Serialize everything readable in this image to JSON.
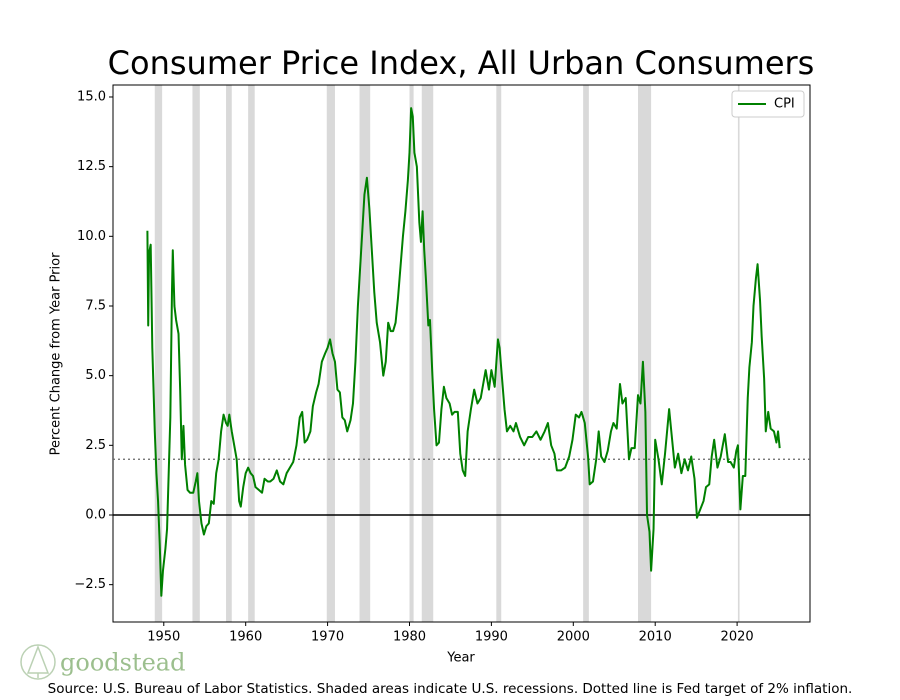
{
  "chart_data": {
    "type": "line",
    "title": "Consumer Price Index, All Urban Consumers",
    "x_label": "Year",
    "y_label": "Percent Change from Year Prior",
    "source": "Source: U.S. Bureau of Labor Statistics. Shaded areas indicate U.S. recessions. Dotted line is Fed target of 2% inflation.",
    "watermark": "goodstead",
    "xlim": [
      1943.8,
      2028.9
    ],
    "ylim": [
      -3.84,
      15.43
    ],
    "xticks": [
      1950,
      1960,
      1970,
      1980,
      1990,
      2000,
      2010,
      2020
    ],
    "yticks": [
      {
        "value": -2.5,
        "label": "−2.5"
      },
      {
        "value": 0,
        "label": "0.0"
      },
      {
        "value": 2.5,
        "label": "2.5"
      },
      {
        "value": 5,
        "label": "5.0"
      },
      {
        "value": 7.5,
        "label": "7.5"
      },
      {
        "value": 10,
        "label": "10.0"
      },
      {
        "value": 12.5,
        "label": "12.5"
      },
      {
        "value": 15,
        "label": "15.0"
      }
    ],
    "reference_line": 2,
    "recessions": [
      [
        1948.9,
        1949.8
      ],
      [
        1953.5,
        1954.4
      ],
      [
        1957.6,
        1958.3
      ],
      [
        1960.3,
        1961.1
      ],
      [
        1969.9,
        1970.9
      ],
      [
        1973.9,
        1975.2
      ],
      [
        1980.0,
        1980.5
      ],
      [
        1981.5,
        1982.9
      ],
      [
        1990.6,
        1991.2
      ],
      [
        2001.2,
        2001.9
      ],
      [
        2007.9,
        2009.5
      ],
      [
        2020.1,
        2020.3
      ]
    ],
    "legend": "upper right",
    "x": [
      1948.0,
      1948.1,
      1948.2,
      1948.4,
      1948.6,
      1948.9,
      1949.1,
      1949.3,
      1949.5,
      1949.7,
      1949.9,
      1950.2,
      1950.4,
      1950.6,
      1950.8,
      1951.0,
      1951.1,
      1951.3,
      1951.5,
      1951.8,
      1952.0,
      1952.2,
      1952.4,
      1952.6,
      1952.9,
      1953.2,
      1953.6,
      1953.9,
      1954.1,
      1954.3,
      1954.6,
      1954.9,
      1955.2,
      1955.5,
      1955.8,
      1956.1,
      1956.4,
      1956.7,
      1957.0,
      1957.3,
      1957.6,
      1957.8,
      1958.0,
      1958.3,
      1958.6,
      1958.9,
      1959.2,
      1959.4,
      1959.7,
      1960.0,
      1960.3,
      1960.6,
      1960.9,
      1961.2,
      1961.6,
      1962.0,
      1962.3,
      1962.7,
      1963.0,
      1963.4,
      1963.8,
      1964.2,
      1964.6,
      1965.0,
      1965.4,
      1965.8,
      1966.2,
      1966.6,
      1966.9,
      1967.2,
      1967.5,
      1967.9,
      1968.2,
      1968.6,
      1968.9,
      1969.3,
      1969.7,
      1970.0,
      1970.3,
      1970.6,
      1970.9,
      1971.2,
      1971.5,
      1971.8,
      1972.1,
      1972.4,
      1972.8,
      1973.1,
      1973.4,
      1973.7,
      1973.9,
      1974.2,
      1974.5,
      1974.8,
      1975.1,
      1975.4,
      1975.7,
      1976.0,
      1976.4,
      1976.8,
      1977.1,
      1977.4,
      1977.7,
      1978.0,
      1978.3,
      1978.6,
      1978.9,
      1979.2,
      1979.5,
      1979.8,
      1980.0,
      1980.2,
      1980.4,
      1980.6,
      1980.9,
      1981.2,
      1981.4,
      1981.6,
      1981.8,
      1982.0,
      1982.3,
      1982.5,
      1982.8,
      1983.0,
      1983.3,
      1983.6,
      1983.9,
      1984.2,
      1984.5,
      1984.9,
      1985.2,
      1985.5,
      1985.9,
      1986.2,
      1986.5,
      1986.8,
      1987.1,
      1987.5,
      1987.9,
      1988.3,
      1988.7,
      1989.0,
      1989.3,
      1989.7,
      1990.0,
      1990.4,
      1990.8,
      1991.0,
      1991.3,
      1991.6,
      1991.9,
      1992.3,
      1992.7,
      1993.0,
      1993.5,
      1994.0,
      1994.5,
      1995.0,
      1995.5,
      1996.0,
      1996.5,
      1996.9,
      1997.3,
      1997.7,
      1998.0,
      1998.5,
      1999.0,
      1999.5,
      1999.9,
      2000.3,
      2000.7,
      2001.0,
      2001.4,
      2001.8,
      2002.0,
      2002.4,
      2002.8,
      2003.1,
      2003.4,
      2003.8,
      2004.2,
      2004.6,
      2004.9,
      2005.3,
      2005.7,
      2006.0,
      2006.4,
      2006.8,
      2007.1,
      2007.5,
      2007.9,
      2008.2,
      2008.5,
      2008.8,
      2009.0,
      2009.3,
      2009.5,
      2009.8,
      2010.0,
      2010.4,
      2010.8,
      2011.2,
      2011.7,
      2012.0,
      2012.4,
      2012.8,
      2013.2,
      2013.6,
      2014.0,
      2014.4,
      2014.8,
      2015.1,
      2015.5,
      2015.9,
      2016.2,
      2016.6,
      2016.9,
      2017.2,
      2017.6,
      2018.0,
      2018.5,
      2018.9,
      2019.2,
      2019.6,
      2019.9,
      2020.1,
      2020.4,
      2020.7,
      2021.0,
      2021.3,
      2021.5,
      2021.8,
      2022.0,
      2022.3,
      2022.5,
      2022.8,
      2023.0,
      2023.3,
      2023.5,
      2023.8,
      2024.1,
      2024.5,
      2024.8,
      2025.0,
      2025.2
    ],
    "series": [
      {
        "name": "CPI",
        "color": "#008000",
        "values": [
          10.2,
          6.8,
          9.4,
          9.7,
          6.0,
          3.0,
          1.5,
          0.5,
          -1.0,
          -2.9,
          -2.0,
          -1.2,
          -0.5,
          1.5,
          3.5,
          8.0,
          9.5,
          7.5,
          7.0,
          6.5,
          4.5,
          2.0,
          3.2,
          1.8,
          0.9,
          0.8,
          0.8,
          1.2,
          1.5,
          0.5,
          -0.3,
          -0.7,
          -0.4,
          -0.3,
          0.5,
          0.4,
          1.5,
          2.0,
          3.0,
          3.6,
          3.3,
          3.2,
          3.6,
          3.0,
          2.5,
          2.0,
          0.5,
          0.3,
          1.0,
          1.5,
          1.7,
          1.5,
          1.4,
          1.0,
          0.9,
          0.8,
          1.3,
          1.2,
          1.2,
          1.3,
          1.6,
          1.2,
          1.1,
          1.5,
          1.7,
          1.9,
          2.5,
          3.5,
          3.7,
          2.6,
          2.7,
          3.0,
          3.9,
          4.4,
          4.7,
          5.5,
          5.8,
          6.0,
          6.3,
          5.8,
          5.5,
          4.5,
          4.4,
          3.5,
          3.4,
          3.0,
          3.4,
          4.0,
          5.5,
          7.5,
          8.5,
          10.0,
          11.5,
          12.1,
          11.0,
          9.5,
          8.0,
          6.9,
          6.2,
          5.0,
          5.5,
          6.9,
          6.6,
          6.6,
          6.9,
          7.8,
          8.9,
          10.0,
          10.9,
          12.0,
          13.0,
          14.6,
          14.3,
          13.0,
          12.5,
          10.5,
          9.8,
          10.9,
          9.5,
          8.5,
          6.8,
          7.0,
          5.0,
          3.8,
          2.5,
          2.6,
          3.8,
          4.6,
          4.2,
          4.0,
          3.6,
          3.7,
          3.7,
          2.2,
          1.6,
          1.4,
          3.0,
          3.8,
          4.5,
          4.0,
          4.2,
          4.7,
          5.2,
          4.5,
          5.2,
          4.6,
          6.3,
          6.0,
          4.9,
          3.8,
          3.0,
          3.2,
          3.0,
          3.3,
          2.8,
          2.5,
          2.8,
          2.8,
          3.0,
          2.7,
          3.0,
          3.3,
          2.5,
          2.2,
          1.6,
          1.6,
          1.7,
          2.1,
          2.7,
          3.6,
          3.5,
          3.7,
          3.3,
          2.1,
          1.1,
          1.2,
          2.0,
          3.0,
          2.1,
          1.9,
          2.3,
          3.0,
          3.3,
          3.1,
          4.7,
          4.0,
          4.2,
          2.0,
          2.4,
          2.4,
          4.3,
          4.0,
          5.5,
          3.7,
          0.0,
          -0.6,
          -2.0,
          -0.5,
          2.7,
          2.0,
          1.1,
          2.2,
          3.8,
          2.9,
          1.7,
          2.2,
          1.5,
          2.0,
          1.6,
          2.1,
          1.3,
          -0.1,
          0.2,
          0.5,
          1.0,
          1.1,
          2.1,
          2.7,
          1.7,
          2.1,
          2.9,
          1.9,
          1.9,
          1.7,
          2.3,
          2.5,
          0.2,
          1.4,
          1.4,
          4.2,
          5.3,
          6.2,
          7.5,
          8.5,
          9.0,
          7.7,
          6.4,
          4.9,
          3.0,
          3.7,
          3.1,
          3.0,
          2.6,
          3.0,
          2.4
        ]
      }
    ]
  }
}
